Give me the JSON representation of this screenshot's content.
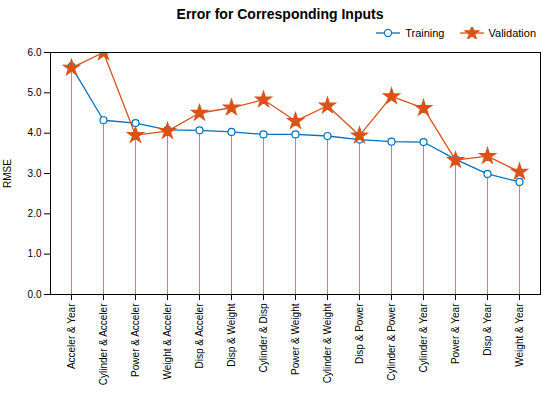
{
  "chart_data": {
    "type": "line",
    "title": "Error for Corresponding Inputs",
    "ylabel": "RMSE",
    "categories": [
      "Acceler & Year",
      "Cylinder & Acceler",
      "Power & Acceler",
      "Weight & Acceler",
      "Disp & Acceler",
      "Disp & Weight",
      "Cylinder & Disp",
      "Power & Weight",
      "Cylinder & Weight",
      "Disp & Power",
      "Cylinder & Power",
      "Cylinder & Year",
      "Power & Year",
      "Disp & Year",
      "Weight & Year"
    ],
    "series": [
      {
        "name": "Training",
        "color": "#0072BD",
        "marker": "circle",
        "values": [
          5.65,
          4.32,
          4.25,
          4.08,
          4.07,
          4.03,
          3.97,
          3.97,
          3.93,
          3.84,
          3.79,
          3.78,
          3.35,
          2.99,
          2.79
        ]
      },
      {
        "name": "Validation",
        "color": "#D95319",
        "marker": "star",
        "values": [
          5.62,
          6.0,
          3.95,
          4.05,
          4.5,
          4.63,
          4.83,
          4.3,
          4.68,
          3.94,
          4.91,
          4.62,
          3.33,
          3.43,
          3.04
        ]
      }
    ],
    "drop_lines": {
      "color": "#00FF00",
      "values": [
        5.62,
        4.32,
        3.95,
        4.05,
        4.07,
        4.03,
        3.97,
        3.97,
        3.93,
        3.84,
        3.79,
        3.78,
        3.33,
        2.99,
        2.79
      ]
    },
    "ylim": [
      0,
      6
    ],
    "yticks": [
      0,
      1,
      2,
      3,
      4,
      5,
      6
    ],
    "grid": false,
    "legend": "upper right"
  }
}
